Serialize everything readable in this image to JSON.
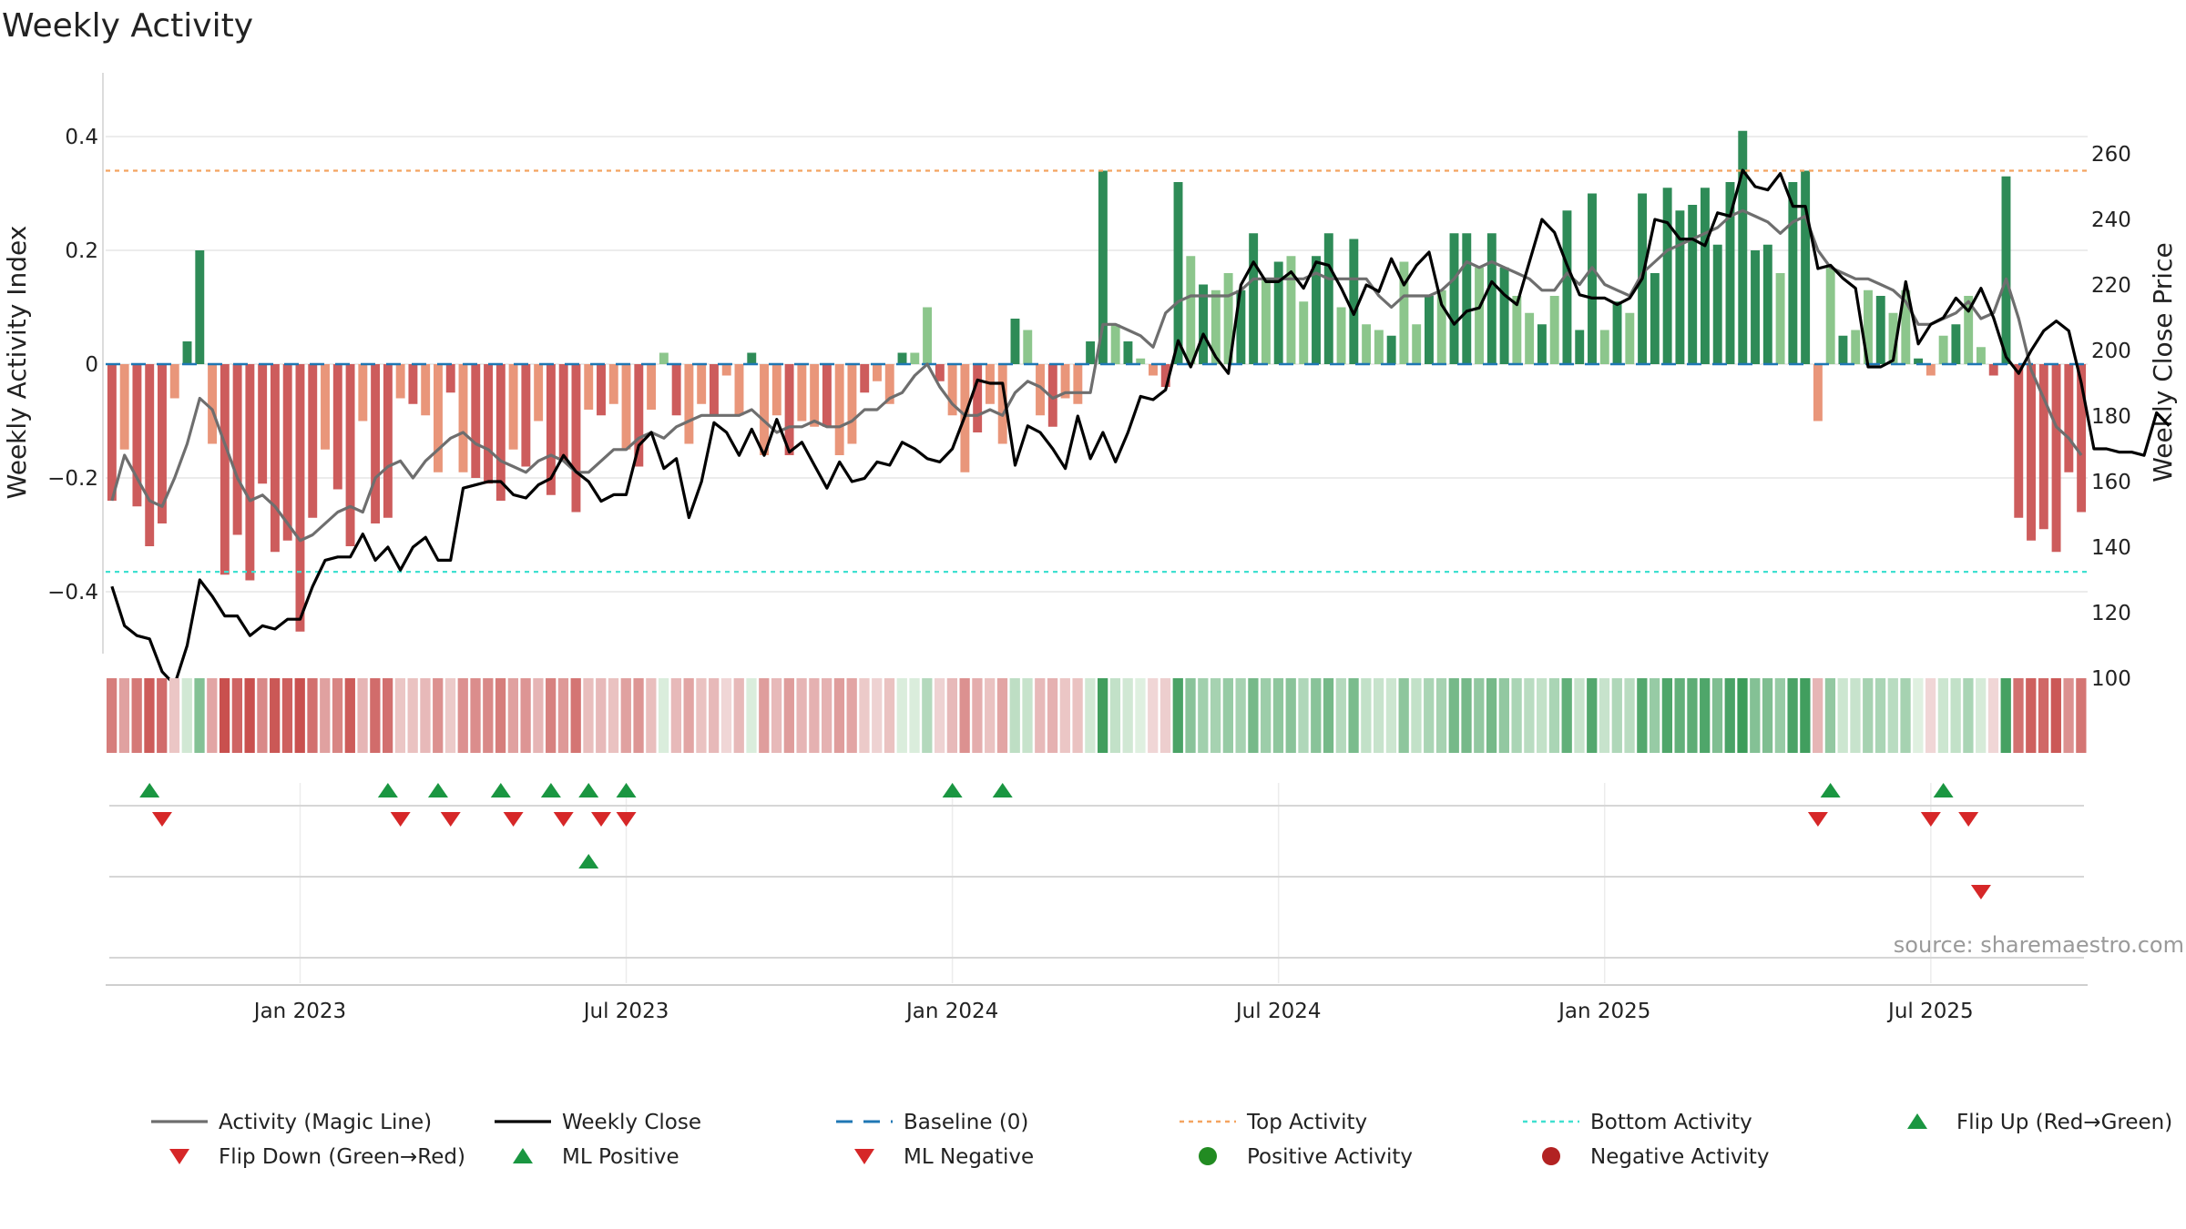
{
  "colors": {
    "green_dark": "#2e8b57",
    "green_light": "#8cc68c",
    "red_dark": "#cd5c5c",
    "red_light": "#e9967a",
    "close_line": "#000000",
    "magic_line": "#6e6e6e",
    "top_line": "#f4a460",
    "bottom_line": "#40e0d0",
    "baseline": "#1f77b4",
    "flip_up": "#1a9641",
    "flip_down": "#d62728",
    "grid": "#e6e6e6",
    "source": "#9a9a9a"
  },
  "chart_data": {
    "type": "bar",
    "title": "Weekly Activity",
    "ylabel": "Weekly Activity Index",
    "y2label": "Weekly Close Price",
    "ylim": [
      -0.5,
      0.5
    ],
    "y2lim": [
      88,
      263
    ],
    "yticks": [
      -0.4,
      -0.2,
      0,
      0.2,
      0.4
    ],
    "ytick_labels": [
      "−0.4",
      "−0.2",
      "0",
      "0.2",
      "0.4"
    ],
    "y2ticks": [
      100,
      120,
      140,
      160,
      180,
      200,
      220,
      240,
      260
    ],
    "y2tick_labels": [
      "100",
      "120",
      "140",
      "160",
      "180",
      "200",
      "220",
      "240",
      "260"
    ],
    "xticks": [
      {
        "week": 15,
        "label": "Jan 2023"
      },
      {
        "week": 41,
        "label": "Jul 2023"
      },
      {
        "week": 67,
        "label": "Jan 2024"
      },
      {
        "week": 93,
        "label": "Jul 2024"
      },
      {
        "week": 119,
        "label": "Jan 2025"
      },
      {
        "week": 145,
        "label": "Jul 2025"
      }
    ],
    "top_activity": 0.34,
    "bottom_activity": -0.365,
    "baseline": 0,
    "activity": [
      -0.24,
      -0.15,
      -0.25,
      -0.32,
      -0.28,
      -0.06,
      0.04,
      0.2,
      -0.14,
      -0.37,
      -0.3,
      -0.38,
      -0.21,
      -0.33,
      -0.31,
      -0.47,
      -0.27,
      -0.15,
      -0.22,
      -0.32,
      -0.1,
      -0.28,
      -0.27,
      -0.06,
      -0.07,
      -0.09,
      -0.19,
      -0.05,
      -0.19,
      -0.2,
      -0.21,
      -0.24,
      -0.15,
      -0.18,
      -0.1,
      -0.23,
      -0.17,
      -0.26,
      -0.08,
      -0.09,
      -0.07,
      -0.15,
      -0.18,
      -0.08,
      0.02,
      -0.09,
      -0.14,
      -0.07,
      -0.09,
      -0.02,
      -0.09,
      0.02,
      -0.16,
      -0.09,
      -0.16,
      -0.1,
      -0.11,
      -0.11,
      -0.16,
      -0.14,
      -0.05,
      -0.03,
      -0.07,
      0.02,
      0.02,
      0.1,
      -0.03,
      -0.09,
      -0.19,
      -0.12,
      -0.07,
      -0.14,
      0.08,
      0.06,
      -0.09,
      -0.11,
      -0.06,
      -0.07,
      0.04,
      0.34,
      0.07,
      0.04,
      0.01,
      -0.02,
      -0.04,
      0.32,
      0.19,
      0.14,
      0.13,
      0.16,
      0.13,
      0.23,
      0.15,
      0.18,
      0.19,
      0.11,
      0.19,
      0.23,
      0.1,
      0.22,
      0.07,
      0.06,
      0.05,
      0.18,
      0.07,
      0.12,
      0.13,
      0.23,
      0.23,
      0.17,
      0.23,
      0.17,
      0.12,
      0.09,
      0.07,
      0.12,
      0.27,
      0.06,
      0.3,
      0.06,
      0.11,
      0.09,
      0.3,
      0.16,
      0.31,
      0.27,
      0.28,
      0.31,
      0.21,
      0.32,
      0.41,
      0.2,
      0.21,
      0.16,
      0.32,
      0.34,
      -0.1,
      0.17,
      0.05,
      0.06,
      0.13,
      0.12,
      0.09,
      0.13,
      0.01,
      -0.02,
      0.05,
      0.07,
      0.12,
      0.03,
      -0.02,
      0.33,
      -0.27,
      -0.31,
      -0.29,
      -0.33,
      -0.19,
      -0.26
    ],
    "magic_line": [
      -0.24,
      -0.16,
      -0.2,
      -0.24,
      -0.25,
      -0.2,
      -0.14,
      -0.06,
      -0.08,
      -0.14,
      -0.2,
      -0.24,
      -0.23,
      -0.25,
      -0.28,
      -0.31,
      -0.3,
      -0.28,
      -0.26,
      -0.25,
      -0.26,
      -0.2,
      -0.18,
      -0.17,
      -0.2,
      -0.17,
      -0.15,
      -0.13,
      -0.12,
      -0.14,
      -0.15,
      -0.17,
      -0.18,
      -0.19,
      -0.17,
      -0.16,
      -0.17,
      -0.19,
      -0.19,
      -0.17,
      -0.15,
      -0.15,
      -0.13,
      -0.12,
      -0.13,
      -0.11,
      -0.1,
      -0.09,
      -0.09,
      -0.09,
      -0.09,
      -0.08,
      -0.1,
      -0.12,
      -0.11,
      -0.11,
      -0.1,
      -0.11,
      -0.11,
      -0.1,
      -0.08,
      -0.08,
      -0.06,
      -0.05,
      -0.02,
      0,
      -0.04,
      -0.07,
      -0.09,
      -0.09,
      -0.08,
      -0.09,
      -0.05,
      -0.03,
      -0.04,
      -0.06,
      -0.05,
      -0.05,
      -0.05,
      0.07,
      0.07,
      0.06,
      0.05,
      0.03,
      0.09,
      0.11,
      0.12,
      0.12,
      0.12,
      0.12,
      0.13,
      0.15,
      0.15,
      0.15,
      0.15,
      0.15,
      0.16,
      0.15,
      0.15,
      0.15,
      0.15,
      0.12,
      0.1,
      0.12,
      0.12,
      0.12,
      0.13,
      0.15,
      0.18,
      0.17,
      0.18,
      0.17,
      0.16,
      0.15,
      0.13,
      0.13,
      0.16,
      0.14,
      0.17,
      0.14,
      0.13,
      0.12,
      0.16,
      0.18,
      0.2,
      0.21,
      0.22,
      0.23,
      0.24,
      0.26,
      0.27,
      0.26,
      0.25,
      0.23,
      0.25,
      0.26,
      0.2,
      0.17,
      0.16,
      0.15,
      0.15,
      0.14,
      0.13,
      0.11,
      0.07,
      0.07,
      0.08,
      0.09,
      0.11,
      0.08,
      0.09,
      0.15,
      0.08,
      -0.01,
      -0.06,
      -0.11,
      -0.13,
      -0.16
    ],
    "weekly_close": [
      128,
      116,
      113,
      112,
      102,
      98,
      110,
      130,
      125,
      119,
      119,
      113,
      116,
      115,
      118,
      118,
      128,
      136,
      137,
      137,
      144,
      136,
      140,
      133,
      140,
      143,
      136,
      136,
      158,
      159,
      160,
      160,
      156,
      155,
      159,
      161,
      168,
      163,
      160,
      154,
      156,
      156,
      171,
      175,
      164,
      167,
      149,
      160,
      178,
      175,
      168,
      176,
      168,
      179,
      169,
      172,
      165,
      158,
      166,
      160,
      161,
      166,
      165,
      172,
      170,
      167,
      166,
      170,
      180,
      191,
      190,
      190,
      165,
      177,
      175,
      170,
      164,
      180,
      167,
      175,
      166,
      175,
      186,
      185,
      188,
      203,
      195,
      205,
      198,
      193,
      220,
      227,
      221,
      221,
      224,
      219,
      227,
      226,
      219,
      211,
      220,
      218,
      228,
      220,
      226,
      230,
      214,
      208,
      212,
      213,
      221,
      217,
      214,
      227,
      240,
      236,
      226,
      217,
      216,
      216,
      214,
      216,
      222,
      240,
      239,
      234,
      234,
      232,
      242,
      241,
      255,
      250,
      249,
      254,
      244,
      244,
      225,
      226,
      222,
      219,
      195,
      195,
      197,
      221,
      202,
      208,
      210,
      216,
      212,
      219,
      210,
      198,
      193,
      200,
      206,
      209,
      206,
      190,
      170,
      170,
      169,
      169,
      168,
      181,
      177
    ],
    "heat_strip": {
      "description": "one colored cell per week, shaded by activity"
    },
    "flip_up_weeks": [
      3,
      22,
      26,
      31,
      35,
      38,
      41,
      67,
      71,
      137,
      146
    ],
    "flip_down_weeks": [
      4,
      23,
      27,
      32,
      36,
      39,
      41,
      136,
      145,
      148
    ],
    "ml_positive_weeks": [
      38
    ],
    "ml_negative_weeks": [
      149
    ],
    "positive_activity_weeks": [],
    "negative_activity_weeks": []
  },
  "legend": [
    {
      "key": "magic",
      "label": "Activity (Magic Line)"
    },
    {
      "key": "close",
      "label": "Weekly Close"
    },
    {
      "key": "baseline",
      "label": "Baseline (0)"
    },
    {
      "key": "top",
      "label": "Top Activity"
    },
    {
      "key": "bottom",
      "label": "Bottom Activity"
    },
    {
      "key": "flip_up",
      "label": "Flip Up (Red→Green)"
    },
    {
      "key": "flip_down",
      "label": "Flip Down (Green→Red)"
    },
    {
      "key": "ml_pos",
      "label": "ML Positive"
    },
    {
      "key": "ml_neg",
      "label": "ML Negative"
    },
    {
      "key": "pos_act",
      "label": "Positive Activity"
    },
    {
      "key": "neg_act",
      "label": "Negative Activity"
    }
  ],
  "source": "source: sharemaestro.com"
}
